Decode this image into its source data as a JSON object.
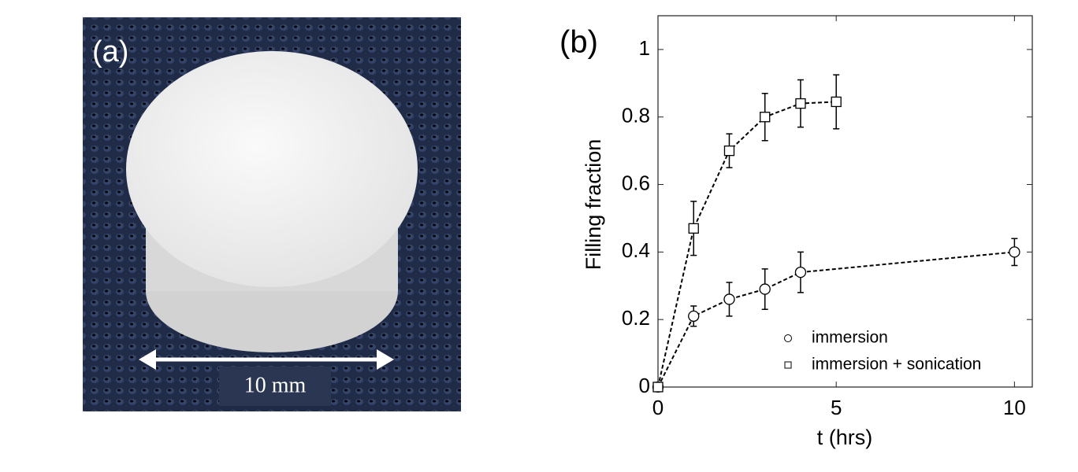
{
  "photo": {
    "label": "(a)",
    "scale_text": "10 mm"
  },
  "chart_data": {
    "type": "line",
    "panel_label": "(b)",
    "x_label": "t (hrs)",
    "y_label": "Filling fraction",
    "xlim": [
      0,
      10.5
    ],
    "ylim": [
      0,
      1.1
    ],
    "xticks": [
      0,
      5,
      10
    ],
    "yticks": [
      0,
      0.2,
      0.4,
      0.6,
      0.8,
      1
    ],
    "legend": "lower right",
    "series": [
      {
        "name": "immersion",
        "color": "#000000",
        "marker": "circle",
        "x": [
          0,
          1,
          2,
          3,
          4,
          10
        ],
        "values": [
          0,
          0.21,
          0.26,
          0.29,
          0.34,
          0.4
        ],
        "errors": [
          0,
          0.03,
          0.05,
          0.06,
          0.06,
          0.04
        ]
      },
      {
        "name": "immersion + sonication",
        "color": "#000000",
        "marker": "square",
        "x": [
          0,
          1,
          2,
          3,
          4,
          5
        ],
        "values": [
          0,
          0.47,
          0.7,
          0.8,
          0.84,
          0.845
        ],
        "errors": [
          0,
          0.08,
          0.05,
          0.07,
          0.07,
          0.08
        ]
      }
    ]
  }
}
